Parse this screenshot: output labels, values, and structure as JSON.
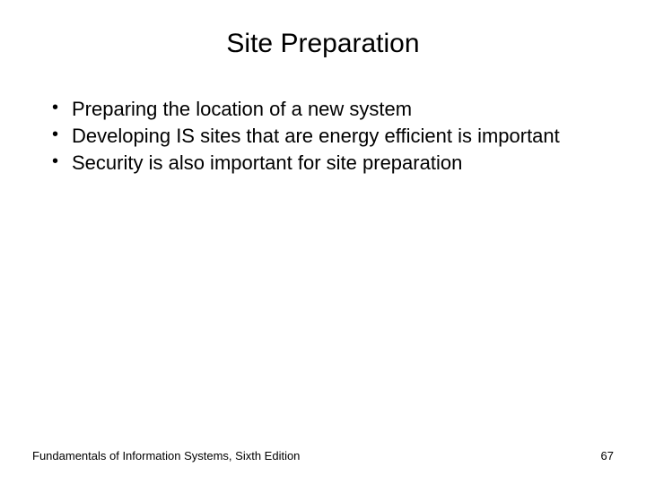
{
  "slide": {
    "title": "Site Preparation",
    "bullets": [
      "Preparing the location of a new system",
      "Developing IS sites that are energy efficient is important",
      "Security is also important for site preparation"
    ],
    "footer_text": "Fundamentals of Information Systems, Sixth Edition",
    "page_number": "67"
  },
  "style": {
    "background_color": "#ffffff",
    "text_color": "#000000",
    "title_fontsize": 30,
    "body_fontsize": 22,
    "footer_fontsize": 13,
    "font_family": "Arial"
  }
}
